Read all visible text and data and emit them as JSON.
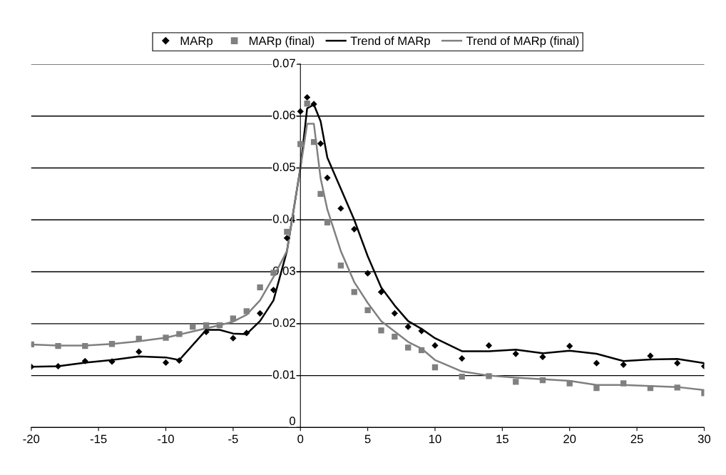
{
  "chart_data": {
    "type": "scatter",
    "xlim": [
      -20,
      30
    ],
    "xticks": [
      -20,
      -15,
      -10,
      -5,
      0,
      5,
      10,
      15,
      20,
      25,
      30
    ],
    "ylim": [
      0,
      0.07
    ],
    "yticks": [
      0,
      0.01,
      0.02,
      0.03,
      0.04,
      0.05,
      0.06,
      0.07
    ],
    "grid": "y",
    "legend": "top",
    "series": [
      {
        "name": "MARp",
        "marker": "diamond",
        "color": "#000000",
        "x": [
          -20,
          -18,
          -16,
          -14,
          -12,
          -10,
          -9,
          -7,
          -5,
          -4,
          -3,
          -2,
          -1,
          0,
          0.5,
          1,
          1.5,
          2,
          3,
          4,
          5,
          6,
          7,
          8,
          9,
          10,
          12,
          14,
          16,
          18,
          20,
          22,
          24,
          26,
          28,
          30
        ],
        "values": [
          0.0117,
          0.0118,
          0.0128,
          0.0127,
          0.0146,
          0.0125,
          0.0129,
          0.0184,
          0.0172,
          0.0182,
          0.022,
          0.0265,
          0.0365,
          0.0609,
          0.0636,
          0.0623,
          0.0547,
          0.0481,
          0.0422,
          0.0382,
          0.0297,
          0.0261,
          0.022,
          0.0194,
          0.0186,
          0.0158,
          0.0133,
          0.0158,
          0.0142,
          0.0136,
          0.0157,
          0.0124,
          0.0121,
          0.0138,
          0.0124,
          0.0118
        ]
      },
      {
        "name": "MARp (final)",
        "marker": "square",
        "color": "#808080",
        "x": [
          -20,
          -18,
          -16,
          -14,
          -12,
          -10,
          -9,
          -8,
          -7,
          -6,
          -5,
          -4,
          -3,
          -2,
          -1,
          0,
          0.5,
          1,
          1.5,
          2,
          3,
          4,
          5,
          6,
          7,
          8,
          9,
          10,
          12,
          14,
          16,
          18,
          20,
          22,
          24,
          26,
          28,
          30
        ],
        "values": [
          0.016,
          0.0157,
          0.0157,
          0.0161,
          0.0171,
          0.0173,
          0.018,
          0.0194,
          0.0197,
          0.0197,
          0.021,
          0.0224,
          0.027,
          0.0298,
          0.0377,
          0.0546,
          0.0624,
          0.055,
          0.045,
          0.0395,
          0.0312,
          0.0261,
          0.0226,
          0.0187,
          0.0175,
          0.0154,
          0.0149,
          0.0116,
          0.0098,
          0.0099,
          0.0088,
          0.0091,
          0.0085,
          0.0076,
          0.0085,
          0.0076,
          0.0077,
          0.0066
        ]
      },
      {
        "name": "Trend of MARp",
        "type": "line",
        "marker": "none",
        "color": "#000000",
        "x": [
          -20,
          -18,
          -16,
          -14,
          -12,
          -10,
          -9,
          -7,
          -6,
          -5,
          -4,
          -3,
          -2,
          -1,
          0,
          0.5,
          1,
          1.5,
          2,
          3,
          4,
          5,
          6,
          7,
          8,
          9,
          10,
          12,
          14,
          16,
          18,
          20,
          22,
          24,
          26,
          28,
          30
        ],
        "values": [
          0.0117,
          0.0118,
          0.0125,
          0.013,
          0.0137,
          0.0135,
          0.013,
          0.0188,
          0.0188,
          0.0181,
          0.018,
          0.0205,
          0.0245,
          0.034,
          0.05,
          0.0615,
          0.0622,
          0.059,
          0.052,
          0.046,
          0.04,
          0.033,
          0.027,
          0.0235,
          0.0205,
          0.019,
          0.0172,
          0.0147,
          0.0147,
          0.015,
          0.0143,
          0.0148,
          0.0142,
          0.0128,
          0.0131,
          0.0132,
          0.0124
        ]
      },
      {
        "name": "Trend of MARp (final)",
        "type": "line",
        "marker": "none",
        "color": "#808080",
        "x": [
          -20,
          -18,
          -16,
          -14,
          -12,
          -10,
          -8,
          -6,
          -5,
          -4,
          -3,
          -2,
          -1,
          0,
          0.5,
          1,
          1.5,
          2,
          3,
          4,
          5,
          6,
          7,
          8,
          9,
          10,
          12,
          14,
          16,
          18,
          20,
          22,
          24,
          26,
          28,
          30
        ],
        "values": [
          0.016,
          0.0158,
          0.0158,
          0.0161,
          0.0166,
          0.0173,
          0.0185,
          0.0197,
          0.0204,
          0.0217,
          0.0245,
          0.029,
          0.034,
          0.05,
          0.0585,
          0.0585,
          0.048,
          0.042,
          0.034,
          0.028,
          0.024,
          0.0205,
          0.0185,
          0.0165,
          0.0152,
          0.013,
          0.0108,
          0.01,
          0.0096,
          0.0093,
          0.009,
          0.0082,
          0.0082,
          0.008,
          0.0078,
          0.0072
        ]
      }
    ]
  }
}
